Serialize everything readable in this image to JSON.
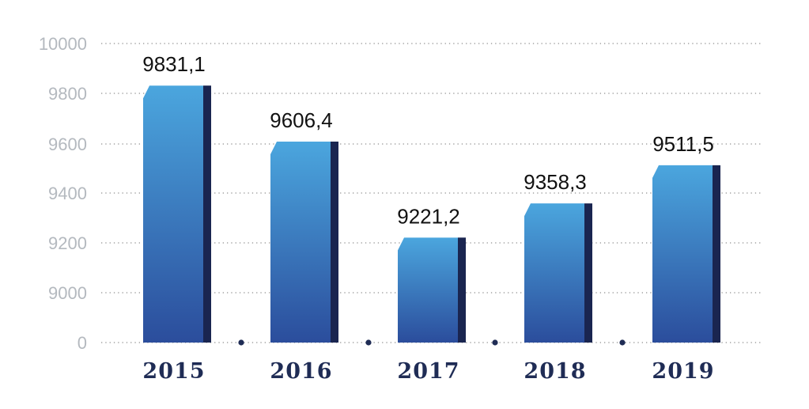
{
  "chart_data": {
    "type": "bar",
    "categories": [
      "2015",
      "2016",
      "2017",
      "2018",
      "2019"
    ],
    "values": [
      9831.1,
      9606.4,
      9221.2,
      9358.3,
      9511.5
    ],
    "value_labels": [
      "9831,1",
      "9606,4",
      "9221,2",
      "9358,3",
      "9511,5"
    ],
    "y_ticks": [
      "0",
      "9000",
      "9200",
      "9400",
      "9600",
      "9800",
      "10000"
    ],
    "ylim": [
      8800,
      10000
    ],
    "axis_break": true,
    "grid": true,
    "title": "",
    "xlabel": "",
    "ylabel": "",
    "colors": {
      "bar_top": "#4ba6de",
      "bar_bottom": "#2b4d9c",
      "bar_side": "#1a2550",
      "grid": "#8f8f8f",
      "tick_text": "#b4b9bf",
      "category_text": "#1f2c55",
      "value_text": "#111111",
      "dot": "#1f2c55"
    }
  }
}
